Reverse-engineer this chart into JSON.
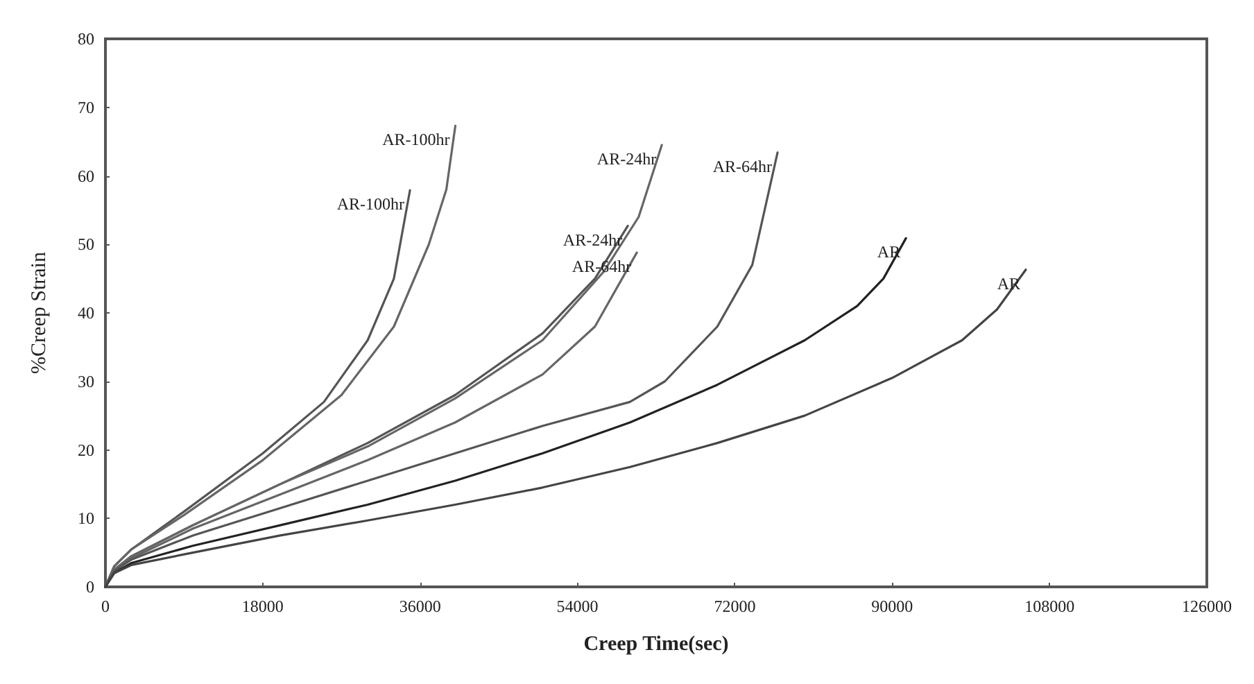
{
  "chart_data": {
    "type": "line",
    "xlabel": "Creep Time(sec)",
    "ylabel": "%Creep Strain",
    "xlim": [
      0,
      126000
    ],
    "xticks": [
      0,
      18000,
      36000,
      54000,
      72000,
      90000,
      108000,
      126000
    ],
    "ylim": [
      0,
      80
    ],
    "yticks": [
      0,
      10,
      20,
      30,
      40,
      50,
      60,
      70,
      80
    ],
    "grid": false,
    "legend": false,
    "marker": "none",
    "line_style": "solid",
    "series": [
      {
        "name": "AR-100hr",
        "color": "#555555",
        "x": [
          0,
          1000,
          3000,
          9000,
          18000,
          25000,
          30000,
          33000,
          34840
        ],
        "values": [
          0,
          3,
          5.5,
          11,
          19.5,
          27,
          36,
          45,
          57.9
        ]
      },
      {
        "name": "AR-100hr",
        "color": "#666666",
        "x": [
          0,
          1000,
          3000,
          9000,
          18000,
          27000,
          33000,
          37000,
          39000,
          40030
        ],
        "values": [
          0,
          3,
          5.5,
          10.5,
          18.5,
          28,
          38,
          50,
          58,
          67.3
        ]
      },
      {
        "name": "AR-24hr",
        "color": "#555555",
        "x": [
          0,
          1000,
          3000,
          10000,
          20000,
          30000,
          40000,
          50000,
          56000,
          59760
        ],
        "values": [
          0,
          2.5,
          4.5,
          9,
          15,
          21,
          28,
          37,
          45,
          52.7
        ]
      },
      {
        "name": "AR-24hr",
        "color": "#666666",
        "x": [
          0,
          1000,
          3000,
          10000,
          20000,
          30000,
          40000,
          50000,
          57000,
          61000,
          63650
        ],
        "values": [
          0,
          2.5,
          4.5,
          9,
          15,
          20.5,
          27.5,
          36,
          46,
          54,
          64.5
        ]
      },
      {
        "name": "AR-64hr",
        "color": "#666666",
        "x": [
          0,
          1000,
          3000,
          10000,
          20000,
          30000,
          40000,
          50000,
          56000,
          60790
        ],
        "values": [
          0,
          2.5,
          4.2,
          8.5,
          13.5,
          18.5,
          24,
          31,
          38,
          48.8
        ]
      },
      {
        "name": "AR-64hr",
        "color": "#555555",
        "x": [
          0,
          1000,
          3000,
          10000,
          20000,
          30000,
          40000,
          50000,
          60000,
          64000,
          70000,
          74000,
          76890
        ],
        "values": [
          0,
          2.3,
          4,
          7.5,
          11.5,
          15.5,
          19.5,
          23.5,
          27,
          30,
          38,
          47,
          63.4
        ]
      },
      {
        "name": "AR",
        "color": "#222222",
        "x": [
          0,
          1000,
          3000,
          10000,
          20000,
          30000,
          40000,
          50000,
          60000,
          70000,
          80000,
          86000,
          89000,
          91580
        ],
        "values": [
          0,
          2,
          3.5,
          6,
          9,
          12,
          15.5,
          19.5,
          24,
          29.5,
          36,
          41,
          45,
          50.9
        ]
      },
      {
        "name": "AR",
        "color": "#444444",
        "x": [
          0,
          1000,
          3000,
          10000,
          20000,
          30000,
          40000,
          50000,
          60000,
          70000,
          80000,
          90000,
          98000,
          102000,
          105290
        ],
        "values": [
          0,
          2,
          3.2,
          5,
          7.5,
          9.7,
          12,
          14.5,
          17.5,
          21,
          25,
          30.5,
          36,
          40.5,
          46.3
        ]
      }
    ]
  }
}
